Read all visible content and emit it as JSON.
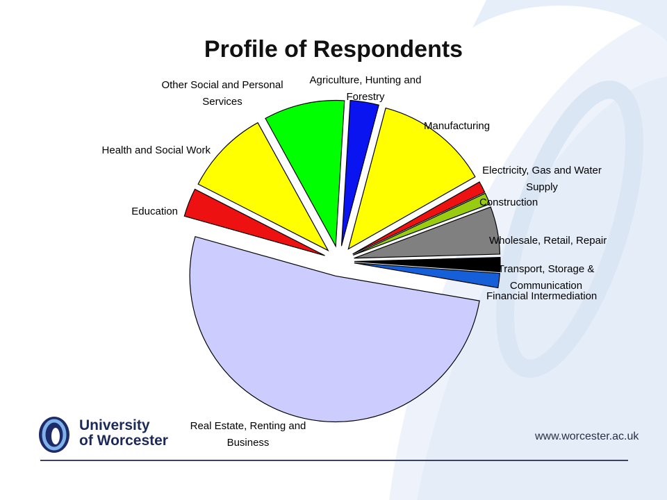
{
  "slide": {
    "title": "Profile of Respondents",
    "logo": {
      "line1": "University",
      "line2": "of Worcester"
    },
    "url": "www.worcester.ac.uk"
  },
  "chart_data": {
    "type": "pie",
    "title": "Profile of Respondents",
    "slices": [
      {
        "label": [
          "Agriculture, Hunting and",
          "Forestry"
        ],
        "value": 3.0,
        "color": "#0a14f0"
      },
      {
        "label": [
          "Manufacturing"
        ],
        "value": 12.0,
        "color": "#ffff00"
      },
      {
        "label": [
          "Electricity, Gas and Water",
          "Supply"
        ],
        "value": 1.2,
        "color": "#ee1111"
      },
      {
        "label": [
          "Construction"
        ],
        "value": 1.2,
        "color": "#99cc11"
      },
      {
        "label": [
          "Wholesale, Retail, Repair"
        ],
        "value": 5.0,
        "color": "#808080"
      },
      {
        "label": [
          "Transport, Storage &",
          "Communication"
        ],
        "value": 1.5,
        "color": "#000000"
      },
      {
        "label": [
          "Financial Intermediation"
        ],
        "value": 1.5,
        "color": "#1560d8"
      },
      {
        "label": [
          "Real Estate, Renting and",
          "Business"
        ],
        "value": 49.0,
        "color": "#ccccff"
      },
      {
        "label": [
          "Education"
        ],
        "value": 3.0,
        "color": "#ee1111"
      },
      {
        "label": [
          "Health and Social Work"
        ],
        "value": 9.0,
        "color": "#ffff00"
      },
      {
        "label": [
          "Other Social and Personal",
          "Services"
        ],
        "value": 8.5,
        "color": "#00ff00"
      }
    ]
  }
}
